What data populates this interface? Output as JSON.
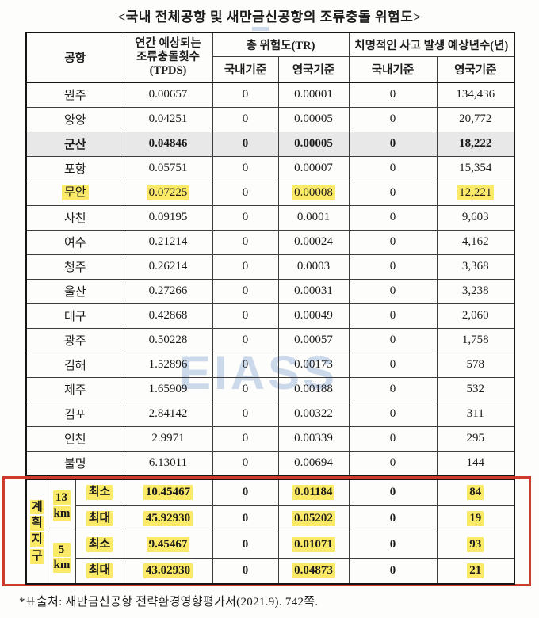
{
  "title": "<국내 전체공항 및 새만금신공항의 조류충돌 위험도>",
  "watermark_text": "EIASS",
  "footer_note": "*표출처: 새만금신공항 전략환경영향평가서(2021.9). 742쪽.",
  "colors": {
    "highlight_yellow": "#fbea67",
    "gray_row": "#e8e8e8",
    "red_outline": "#cd3b2d",
    "watermark_blue": "#9db7da"
  },
  "table": {
    "header": {
      "airport_label": "공항",
      "tpds_label": "연간 예상되는\n조류충돌횟수\n(TPDS)",
      "tr_group_label": "총 위험도(TR)",
      "years_group_label": "치명적인 사고 발생 예상년수(년)",
      "domestic_label": "국내기준",
      "uk_label": "영국기준"
    },
    "rows": [
      {
        "airport": "원주",
        "tpds": "0.00657",
        "tr_dom": "0",
        "tr_uk": "0.00001",
        "yr_dom": "0",
        "yr_uk": "134,436",
        "style": "normal"
      },
      {
        "airport": "양양",
        "tpds": "0.04251",
        "tr_dom": "0",
        "tr_uk": "0.00005",
        "yr_dom": "0",
        "yr_uk": "20,772",
        "style": "normal"
      },
      {
        "airport": "군산",
        "tpds": "0.04846",
        "tr_dom": "0",
        "tr_uk": "0.00005",
        "yr_dom": "0",
        "yr_uk": "18,222",
        "style": "gray"
      },
      {
        "airport": "포항",
        "tpds": "0.05751",
        "tr_dom": "0",
        "tr_uk": "0.00007",
        "yr_dom": "0",
        "yr_uk": "15,354",
        "style": "normal"
      },
      {
        "airport": "무안",
        "tpds": "0.07225",
        "tr_dom": "0",
        "tr_uk": "0.00008",
        "yr_dom": "0",
        "yr_uk": "12,221",
        "style": "highlight"
      },
      {
        "airport": "사천",
        "tpds": "0.09195",
        "tr_dom": "0",
        "tr_uk": "0.0001",
        "yr_dom": "0",
        "yr_uk": "9,603",
        "style": "normal"
      },
      {
        "airport": "여수",
        "tpds": "0.21214",
        "tr_dom": "0",
        "tr_uk": "0.00024",
        "yr_dom": "0",
        "yr_uk": "4,162",
        "style": "normal"
      },
      {
        "airport": "청주",
        "tpds": "0.26214",
        "tr_dom": "0",
        "tr_uk": "0.0003",
        "yr_dom": "0",
        "yr_uk": "3,368",
        "style": "normal"
      },
      {
        "airport": "울산",
        "tpds": "0.27266",
        "tr_dom": "0",
        "tr_uk": "0.00031",
        "yr_dom": "0",
        "yr_uk": "3,238",
        "style": "normal"
      },
      {
        "airport": "대구",
        "tpds": "0.42868",
        "tr_dom": "0",
        "tr_uk": "0.00049",
        "yr_dom": "0",
        "yr_uk": "2,060",
        "style": "normal"
      },
      {
        "airport": "광주",
        "tpds": "0.50228",
        "tr_dom": "0",
        "tr_uk": "0.00057",
        "yr_dom": "0",
        "yr_uk": "1,758",
        "style": "normal"
      },
      {
        "airport": "김해",
        "tpds": "1.52896",
        "tr_dom": "0",
        "tr_uk": "0.00173",
        "yr_dom": "0",
        "yr_uk": "578",
        "style": "normal"
      },
      {
        "airport": "제주",
        "tpds": "1.65909",
        "tr_dom": "0",
        "tr_uk": "0.00188",
        "yr_dom": "0",
        "yr_uk": "532",
        "style": "normal"
      },
      {
        "airport": "김포",
        "tpds": "2.84142",
        "tr_dom": "0",
        "tr_uk": "0.00322",
        "yr_dom": "0",
        "yr_uk": "311",
        "style": "normal"
      },
      {
        "airport": "인천",
        "tpds": "2.9971",
        "tr_dom": "0",
        "tr_uk": "0.00339",
        "yr_dom": "0",
        "yr_uk": "295",
        "style": "normal"
      },
      {
        "airport": "불명",
        "tpds": "6.13011",
        "tr_dom": "0",
        "tr_uk": "0.00694",
        "yr_dom": "0",
        "yr_uk": "144",
        "style": "normal"
      }
    ],
    "plan": {
      "zone_chars": [
        "계",
        "획",
        "지",
        "구"
      ],
      "groups": [
        {
          "radius": "13",
          "unit": "km",
          "rows": [
            {
              "minmax": "최소",
              "tpds": "10.45467",
              "tr_dom": "0",
              "tr_uk": "0.01184",
              "yr_dom": "0",
              "yr_uk": "84"
            },
            {
              "minmax": "최대",
              "tpds": "45.92930",
              "tr_dom": "0",
              "tr_uk": "0.05202",
              "yr_dom": "0",
              "yr_uk": "19"
            }
          ]
        },
        {
          "radius": "5",
          "unit": "km",
          "rows": [
            {
              "minmax": "최소",
              "tpds": "9.45467",
              "tr_dom": "0",
              "tr_uk": "0.01071",
              "yr_dom": "0",
              "yr_uk": "93"
            },
            {
              "minmax": "최대",
              "tpds": "43.02930",
              "tr_dom": "0",
              "tr_uk": "0.04873",
              "yr_dom": "0",
              "yr_uk": "21"
            }
          ]
        }
      ]
    }
  }
}
